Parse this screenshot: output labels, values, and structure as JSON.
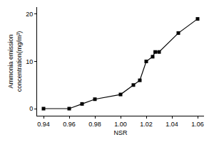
{
  "chart_data": {
    "type": "line",
    "x_label": "NSR",
    "y_label": "Ammonia emission concentration(mg/m³)",
    "x": [
      0.94,
      0.96,
      0.97,
      0.98,
      1.0,
      1.01,
      1.015,
      1.02,
      1.025,
      1.027,
      1.03,
      1.045,
      1.06
    ],
    "values": [
      0,
      0,
      1,
      2,
      3,
      5,
      6,
      10,
      11,
      12,
      12,
      16,
      19
    ],
    "color": "#000000",
    "marker": "square",
    "line_style": "solid",
    "xlim": [
      0.935,
      1.065
    ],
    "xticks": [
      0.94,
      0.96,
      0.98,
      {
        "value": 1,
        "label": "1.00"
      },
      1.02,
      1.04,
      1.06
    ],
    "ylim": [
      -1.5,
      21.5
    ],
    "yticks": [
      0,
      10,
      20
    ],
    "grid": false
  }
}
